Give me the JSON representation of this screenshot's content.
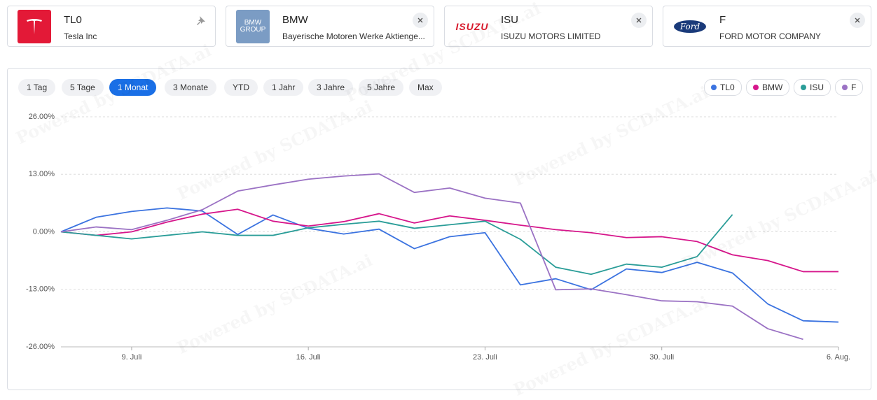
{
  "cards": [
    {
      "symbol": "TL0",
      "name": "Tesla Inc"
    },
    {
      "symbol": "BMW",
      "name": "Bayerische Motoren Werke Aktienge...",
      "logo": [
        "BMW",
        "GROUP"
      ]
    },
    {
      "symbol": "ISU",
      "name": "ISUZU MOTORS LIMITED",
      "logo": "ISUZU"
    },
    {
      "symbol": "F",
      "name": "FORD MOTOR COMPANY",
      "logo": "Ford"
    }
  ],
  "ranges": [
    "1 Tag",
    "5 Tage",
    "1 Monat",
    "3 Monate",
    "YTD",
    "1 Jahr",
    "3 Jahre",
    "5 Jahre",
    "Max"
  ],
  "watermark": "Powered by SCDATA.ai",
  "chart_data": {
    "type": "line",
    "categories": [
      null,
      null,
      "9. Juli",
      null,
      null,
      null,
      null,
      "16. Juli",
      null,
      null,
      null,
      null,
      "23. Juli",
      null,
      null,
      null,
      null,
      "30. Juli",
      null,
      null,
      null,
      null,
      "6. Aug."
    ],
    "series": [
      {
        "name": "TL0",
        "color": "#3b73e0",
        "values": [
          0,
          3.3,
          4.6,
          5.4,
          4.7,
          -0.6,
          3.8,
          0.8,
          -0.5,
          0.6,
          -3.8,
          -1.1,
          -0.2,
          -12.0,
          -10.6,
          -13.1,
          -8.4,
          -9.2,
          -6.9,
          -9.3,
          -16.3,
          -20.1,
          -20.4
        ]
      },
      {
        "name": "BMW",
        "color": "#d6168b",
        "values": [
          0,
          -0.8,
          0,
          2.2,
          4.0,
          5.1,
          2.4,
          1.3,
          2.3,
          4.1,
          2.0,
          3.6,
          2.6,
          1.5,
          0.5,
          -0.2,
          -1.3,
          -1.1,
          -2.2,
          -5.2,
          -6.5,
          -9.0,
          -9.0
        ]
      },
      {
        "name": "ISU",
        "color": "#2a9d98",
        "values": [
          0,
          -0.8,
          -1.6,
          -0.8,
          0,
          -0.8,
          -0.8,
          0.9,
          1.7,
          2.4,
          0.8,
          1.6,
          2.4,
          -1.7,
          -8.0,
          -9.6,
          -7.3,
          -8.0,
          -5.6,
          3.9,
          null,
          null,
          null
        ]
      },
      {
        "name": "F",
        "color": "#9b72c4",
        "values": [
          0,
          1.1,
          0.5,
          2.6,
          5.0,
          9.2,
          10.6,
          11.9,
          12.6,
          13.1,
          8.9,
          9.9,
          7.6,
          6.5,
          -13.1,
          -12.9,
          -14.2,
          -15.6,
          -15.8,
          -16.8,
          -21.9,
          -24.3,
          null
        ]
      }
    ],
    "ylim": [
      -26,
      26
    ],
    "yticks": [
      {
        "value": 26,
        "label": "26.00%"
      },
      {
        "value": 13,
        "label": "13.00%"
      },
      {
        "value": 0,
        "label": "0.00%"
      },
      {
        "value": -13,
        "label": "-13.00%"
      },
      {
        "value": -26,
        "label": "-26.00%"
      }
    ],
    "grid": true
  }
}
